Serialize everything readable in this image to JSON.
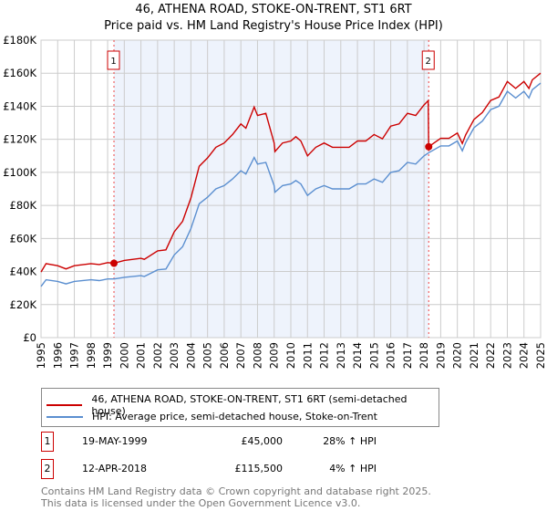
{
  "chart_data": {
    "type": "line",
    "title": "46, ATHENA ROAD, STOKE-ON-TRENT, ST1 6RT",
    "subtitle": "Price paid vs. HM Land Registry's House Price Index (HPI)",
    "xlim": [
      1995,
      2025
    ],
    "ylim": [
      0,
      180000
    ],
    "y_ticks": [
      0,
      20000,
      40000,
      60000,
      80000,
      100000,
      120000,
      140000,
      160000,
      180000
    ],
    "y_tick_labels": [
      "£0",
      "£20K",
      "£40K",
      "£60K",
      "£80K",
      "£100K",
      "£120K",
      "£140K",
      "£160K",
      "£180K"
    ],
    "x_ticks": [
      1995,
      1996,
      1997,
      1998,
      1999,
      2000,
      2001,
      2002,
      2003,
      2004,
      2005,
      2006,
      2007,
      2008,
      2009,
      2010,
      2011,
      2012,
      2013,
      2014,
      2015,
      2016,
      2017,
      2018,
      2019,
      2020,
      2021,
      2022,
      2023,
      2024,
      2025
    ],
    "grid": true,
    "shaded_range": [
      1999.38,
      2018.28
    ],
    "series": [
      {
        "name": "46, ATHENA ROAD, STOKE-ON-TRENT, ST1 6RT (semi-detached house)",
        "color": "#cc0000",
        "points": [
          [
            1995,
            39.7
          ],
          [
            1995.3,
            44.8
          ],
          [
            1996,
            43.5
          ],
          [
            1996.5,
            41.6
          ],
          [
            1997,
            43.5
          ],
          [
            1998,
            44.8
          ],
          [
            1998.5,
            44.2
          ],
          [
            1999,
            45.4
          ],
          [
            1999.38,
            45
          ],
          [
            2000,
            46.7
          ],
          [
            2001,
            48
          ],
          [
            2001.2,
            47.4
          ],
          [
            2002,
            52.5
          ],
          [
            2002.5,
            53.1
          ],
          [
            2003,
            64
          ],
          [
            2003.5,
            70.4
          ],
          [
            2004,
            84.5
          ],
          [
            2004.3,
            96
          ],
          [
            2004.5,
            103.7
          ],
          [
            2005,
            108.8
          ],
          [
            2005.5,
            115.2
          ],
          [
            2006,
            117.8
          ],
          [
            2006.5,
            122.9
          ],
          [
            2007,
            129.3
          ],
          [
            2007.3,
            126.7
          ],
          [
            2007.8,
            139.5
          ],
          [
            2008,
            134.4
          ],
          [
            2008.5,
            135.7
          ],
          [
            2009,
            117.8
          ],
          [
            2009.05,
            112.6
          ],
          [
            2009.5,
            117.8
          ],
          [
            2010,
            119
          ],
          [
            2010.3,
            121.6
          ],
          [
            2010.6,
            119
          ],
          [
            2011,
            110
          ],
          [
            2011.5,
            115.2
          ],
          [
            2012,
            117.8
          ],
          [
            2012.5,
            115.2
          ],
          [
            2013,
            115.2
          ],
          [
            2013.5,
            115.2
          ],
          [
            2014,
            119
          ],
          [
            2014.5,
            119
          ],
          [
            2015,
            122.9
          ],
          [
            2015.5,
            120.3
          ],
          [
            2016,
            128
          ],
          [
            2016.5,
            129.3
          ],
          [
            2017,
            135.7
          ],
          [
            2017.5,
            134.4
          ],
          [
            2018,
            140.8
          ],
          [
            2018.25,
            143.4
          ],
          [
            2018.28,
            115.5
          ],
          [
            2019,
            120.6
          ],
          [
            2019.5,
            120.6
          ],
          [
            2020,
            123.8
          ],
          [
            2020.3,
            117.5
          ],
          [
            2020.5,
            122.7
          ],
          [
            2021,
            132
          ],
          [
            2021.5,
            136.2
          ],
          [
            2022,
            143.5
          ],
          [
            2022.5,
            145.6
          ],
          [
            2023,
            155
          ],
          [
            2023.5,
            150.8
          ],
          [
            2024,
            155
          ],
          [
            2024.3,
            150.8
          ],
          [
            2024.5,
            156
          ],
          [
            2025,
            160
          ]
        ]
      },
      {
        "name": "HPI: Average price, semi-detached house, Stoke-on-Trent",
        "color": "#5b8fd0",
        "points": [
          [
            1995,
            31
          ],
          [
            1995.3,
            35
          ],
          [
            1996,
            34
          ],
          [
            1996.5,
            32.5
          ],
          [
            1997,
            34
          ],
          [
            1998,
            35
          ],
          [
            1998.5,
            34.5
          ],
          [
            1999,
            35.5
          ],
          [
            1999.4,
            35.5
          ],
          [
            2000,
            36.5
          ],
          [
            2001,
            37.5
          ],
          [
            2001.2,
            37
          ],
          [
            2002,
            41
          ],
          [
            2002.5,
            41.5
          ],
          [
            2003,
            50
          ],
          [
            2003.5,
            55
          ],
          [
            2004,
            66
          ],
          [
            2004.3,
            75
          ],
          [
            2004.5,
            81
          ],
          [
            2005,
            85
          ],
          [
            2005.5,
            90
          ],
          [
            2006,
            92
          ],
          [
            2006.5,
            96
          ],
          [
            2007,
            101
          ],
          [
            2007.3,
            99
          ],
          [
            2007.8,
            109
          ],
          [
            2008,
            105
          ],
          [
            2008.5,
            106
          ],
          [
            2009,
            92
          ],
          [
            2009.05,
            88
          ],
          [
            2009.5,
            92
          ],
          [
            2010,
            93
          ],
          [
            2010.3,
            95
          ],
          [
            2010.6,
            93
          ],
          [
            2011,
            86
          ],
          [
            2011.5,
            90
          ],
          [
            2012,
            92
          ],
          [
            2012.5,
            90
          ],
          [
            2013,
            90
          ],
          [
            2013.5,
            90
          ],
          [
            2014,
            93
          ],
          [
            2014.5,
            93
          ],
          [
            2015,
            96
          ],
          [
            2015.5,
            94
          ],
          [
            2016,
            100
          ],
          [
            2016.5,
            101
          ],
          [
            2017,
            106
          ],
          [
            2017.5,
            105
          ],
          [
            2018,
            110
          ],
          [
            2018.3,
            112
          ],
          [
            2019,
            116
          ],
          [
            2019.5,
            116
          ],
          [
            2020,
            119
          ],
          [
            2020.3,
            113
          ],
          [
            2020.5,
            118
          ],
          [
            2021,
            127
          ],
          [
            2021.5,
            131
          ],
          [
            2022,
            138
          ],
          [
            2022.5,
            140
          ],
          [
            2023,
            149
          ],
          [
            2023.5,
            145
          ],
          [
            2024,
            149
          ],
          [
            2024.3,
            145
          ],
          [
            2024.5,
            150
          ],
          [
            2025,
            154
          ]
        ]
      }
    ],
    "annotations": [
      {
        "label": "1",
        "x": 1999.38,
        "y": 45000
      },
      {
        "label": "2",
        "x": 2018.28,
        "y": 115500
      }
    ]
  },
  "sales": [
    {
      "num": "1",
      "date": "19-MAY-1999",
      "price": "£45,000",
      "hpi": "28% ↑ HPI"
    },
    {
      "num": "2",
      "date": "12-APR-2018",
      "price": "£115,500",
      "hpi": "4% ↑ HPI"
    }
  ],
  "footer": [
    "Contains HM Land Registry data © Crown copyright and database right 2025.",
    "This data is licensed under the Open Government Licence v3.0."
  ]
}
